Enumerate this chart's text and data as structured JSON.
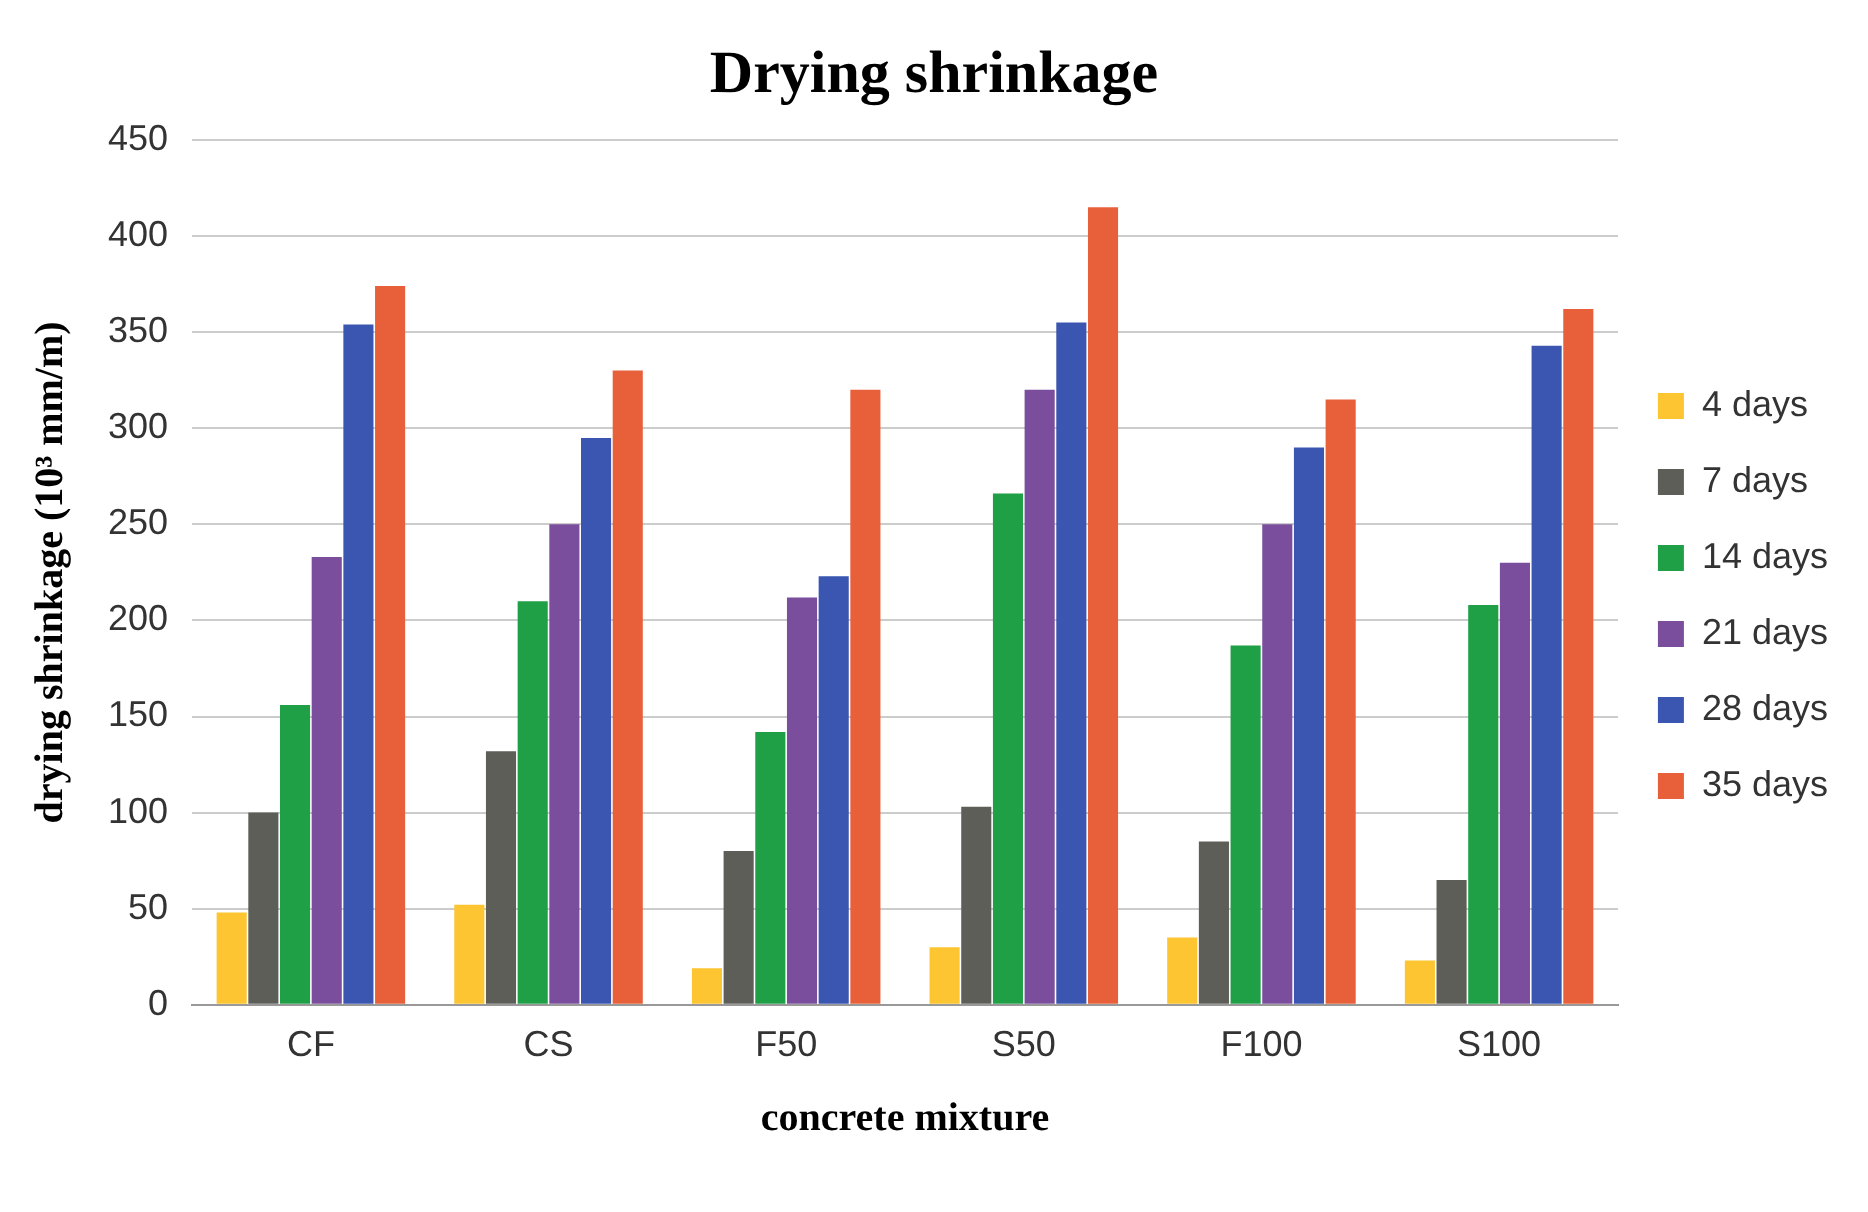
{
  "chart_data": {
    "type": "bar",
    "title": "Drying shrinkage",
    "xlabel": "concrete mixture",
    "ylabel": "drying shrinkage (10³ mm/m)",
    "categories": [
      "CF",
      "CS",
      "F50",
      "S50",
      "F100",
      "S100"
    ],
    "series": [
      {
        "name": "4 days",
        "color": "#fcc531",
        "values": [
          48,
          52,
          19,
          30,
          35,
          23
        ]
      },
      {
        "name": "7 days",
        "color": "#5e5e58",
        "values": [
          100,
          132,
          80,
          103,
          85,
          65
        ]
      },
      {
        "name": "14 days",
        "color": "#1fa046",
        "values": [
          156,
          210,
          142,
          266,
          187,
          208
        ]
      },
      {
        "name": "21 days",
        "color": "#7a4e9c",
        "values": [
          233,
          250,
          212,
          320,
          250,
          230
        ]
      },
      {
        "name": "28 days",
        "color": "#3a56b0",
        "values": [
          354,
          295,
          223,
          355,
          290,
          343
        ]
      },
      {
        "name": "35 days",
        "color": "#e8603a",
        "values": [
          374,
          330,
          320,
          415,
          315,
          362
        ]
      }
    ],
    "ylim": [
      0,
      450
    ],
    "yticks": [
      0,
      50,
      100,
      150,
      200,
      250,
      300,
      350,
      400,
      450
    ],
    "grid": "y",
    "legend": "right"
  }
}
